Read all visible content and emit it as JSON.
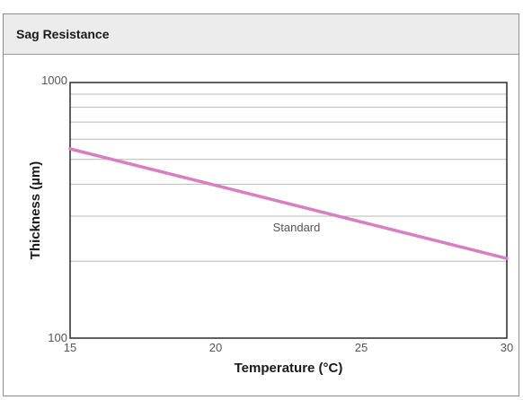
{
  "panel": {
    "title": "Sag Resistance"
  },
  "chart_data": {
    "type": "line",
    "title": "Sag Resistance",
    "xlabel": "Temperature (°C)",
    "ylabel": "Thickness (µm)",
    "xlim": [
      15,
      30
    ],
    "ylim": [
      100,
      1000
    ],
    "yscale": "log",
    "x_ticks": [
      15,
      20,
      25,
      30
    ],
    "x_tick_labels": [
      "15",
      "20",
      "25",
      "30"
    ],
    "y_tick_labels": [
      "100",
      "1000"
    ],
    "grid": true,
    "series": [
      {
        "name": "Standard",
        "color": "#d87fc0",
        "x": [
          15,
          30
        ],
        "y": [
          550,
          205
        ]
      }
    ]
  }
}
